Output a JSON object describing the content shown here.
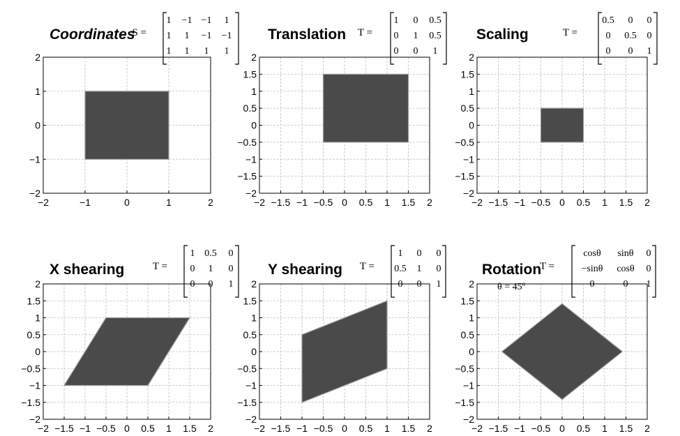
{
  "panels": [
    {
      "id": "coordinates",
      "title": "Coordinates",
      "italic": true,
      "matrix_label": "S =",
      "matrix": [
        [
          "1",
          "−1",
          "−1",
          "1"
        ],
        [
          "1",
          "1",
          "−1",
          "−1"
        ],
        [
          "1",
          "1",
          "1",
          "1"
        ]
      ],
      "theta_label": "",
      "xlim": [
        -2,
        2
      ],
      "ylim": [
        -2,
        2
      ],
      "xticks": [
        "−2",
        "−1",
        "0",
        "1",
        "2"
      ],
      "xtick_values": [
        -2,
        -1,
        0,
        1,
        2
      ],
      "yticks": [
        "−2",
        "−1",
        "0",
        "1",
        "2"
      ],
      "ytick_values": [
        -2,
        -1,
        0,
        1,
        2
      ],
      "polygon": [
        [
          -1,
          -1
        ],
        [
          1,
          -1
        ],
        [
          1,
          1
        ],
        [
          -1,
          1
        ]
      ]
    },
    {
      "id": "translation",
      "title": "Translation",
      "italic": false,
      "matrix_label": "T =",
      "matrix": [
        [
          "1",
          "0",
          "0.5"
        ],
        [
          "0",
          "1",
          "0.5"
        ],
        [
          "0",
          "0",
          "1"
        ]
      ],
      "theta_label": "",
      "xlim": [
        -2,
        2
      ],
      "ylim": [
        -2,
        2
      ],
      "xticks": [
        "−2",
        "−1.5",
        "−1",
        "−0.5",
        "0",
        "0.5",
        "1",
        "1.5",
        "2"
      ],
      "xtick_values": [
        -2,
        -1.5,
        -1,
        -0.5,
        0,
        0.5,
        1,
        1.5,
        2
      ],
      "yticks": [
        "−2",
        "−1.5",
        "−1",
        "−0.5",
        "0",
        "0.5",
        "1",
        "1.5",
        "2"
      ],
      "ytick_values": [
        -2,
        -1.5,
        -1,
        -0.5,
        0,
        0.5,
        1,
        1.5,
        2
      ],
      "polygon": [
        [
          -0.5,
          -0.5
        ],
        [
          1.5,
          -0.5
        ],
        [
          1.5,
          1.5
        ],
        [
          -0.5,
          1.5
        ]
      ]
    },
    {
      "id": "scaling",
      "title": "Scaling",
      "italic": false,
      "matrix_label": "T =",
      "matrix": [
        [
          "0.5",
          "0",
          "0"
        ],
        [
          "0",
          "0.5",
          "0"
        ],
        [
          "0",
          "0",
          "1"
        ]
      ],
      "theta_label": "",
      "xlim": [
        -2,
        2
      ],
      "ylim": [
        -2,
        2
      ],
      "xticks": [
        "−2",
        "−1.5",
        "−1",
        "−0.5",
        "0",
        "0.5",
        "1",
        "1.5",
        "2"
      ],
      "xtick_values": [
        -2,
        -1.5,
        -1,
        -0.5,
        0,
        0.5,
        1,
        1.5,
        2
      ],
      "yticks": [
        "−2",
        "−1.5",
        "−1",
        "−0.5",
        "0",
        "0.5",
        "1",
        "1.5",
        "2"
      ],
      "ytick_values": [
        -2,
        -1.5,
        -1,
        -0.5,
        0,
        0.5,
        1,
        1.5,
        2
      ],
      "polygon": [
        [
          -0.5,
          -0.5
        ],
        [
          0.5,
          -0.5
        ],
        [
          0.5,
          0.5
        ],
        [
          -0.5,
          0.5
        ]
      ]
    },
    {
      "id": "x-shearing",
      "title": "X shearing",
      "italic": false,
      "matrix_label": "T =",
      "matrix": [
        [
          "1",
          "0.5",
          "0"
        ],
        [
          "0",
          "1",
          "0"
        ],
        [
          "0",
          "0",
          "1"
        ]
      ],
      "theta_label": "",
      "xlim": [
        -2,
        2
      ],
      "ylim": [
        -2,
        2
      ],
      "xticks": [
        "−2",
        "−1.5",
        "−1",
        "−0.5",
        "0",
        "0.5",
        "1",
        "1.5",
        "2"
      ],
      "xtick_values": [
        -2,
        -1.5,
        -1,
        -0.5,
        0,
        0.5,
        1,
        1.5,
        2
      ],
      "yticks": [
        "−2",
        "−1.5",
        "−1",
        "−0.5",
        "0",
        "0.5",
        "1",
        "1.5",
        "2"
      ],
      "ytick_values": [
        -2,
        -1.5,
        -1,
        -0.5,
        0,
        0.5,
        1,
        1.5,
        2
      ],
      "polygon": [
        [
          -1.5,
          -1
        ],
        [
          0.5,
          -1
        ],
        [
          1.5,
          1
        ],
        [
          -0.5,
          1
        ]
      ]
    },
    {
      "id": "y-shearing",
      "title": "Y shearing",
      "italic": false,
      "matrix_label": "T =",
      "matrix": [
        [
          "1",
          "0",
          "0"
        ],
        [
          "0.5",
          "1",
          "0"
        ],
        [
          "0",
          "0",
          "1"
        ]
      ],
      "theta_label": "",
      "xlim": [
        -2,
        2
      ],
      "ylim": [
        -2,
        2
      ],
      "xticks": [
        "−2",
        "−1.5",
        "−1",
        "−0.5",
        "0",
        "0.5",
        "1",
        "1.5",
        "2"
      ],
      "xtick_values": [
        -2,
        -1.5,
        -1,
        -0.5,
        0,
        0.5,
        1,
        1.5,
        2
      ],
      "yticks": [
        "−2",
        "−1.5",
        "−1",
        "−0.5",
        "0",
        "0.5",
        "1",
        "1.5",
        "2"
      ],
      "ytick_values": [
        -2,
        -1.5,
        -1,
        -0.5,
        0,
        0.5,
        1,
        1.5,
        2
      ],
      "polygon": [
        [
          -1,
          -1.5
        ],
        [
          1,
          -0.5
        ],
        [
          1,
          1.5
        ],
        [
          -1,
          0.5
        ]
      ]
    },
    {
      "id": "rotation",
      "title": "Rotation",
      "italic": false,
      "matrix_label": "T =",
      "matrix": [
        [
          "cosθ",
          "sinθ",
          "0"
        ],
        [
          "−sinθ",
          "cosθ",
          "0"
        ],
        [
          "0",
          "0",
          "1"
        ]
      ],
      "theta_label": "θ = 45º",
      "xlim": [
        -2,
        2
      ],
      "ylim": [
        -2,
        2
      ],
      "xticks": [
        "−2",
        "−1.5",
        "−1",
        "−0.5",
        "0",
        "0.5",
        "1",
        "1.5",
        "2"
      ],
      "xtick_values": [
        -2,
        -1.5,
        -1,
        -0.5,
        0,
        0.5,
        1,
        1.5,
        2
      ],
      "yticks": [
        "−2",
        "−1.5",
        "−1",
        "−0.5",
        "0",
        "0.5",
        "1",
        "1.5",
        "2"
      ],
      "ytick_values": [
        -2,
        -1.5,
        -1,
        -0.5,
        0,
        0.5,
        1,
        1.5,
        2
      ],
      "polygon": [
        [
          -1.414,
          0
        ],
        [
          0,
          -1.414
        ],
        [
          1.414,
          0
        ],
        [
          0,
          1.414
        ]
      ]
    }
  ],
  "colors": {
    "shape_fill": "#4a4a4a",
    "shape_edge": "#9a9a9a",
    "grid": "#bdbdbd",
    "axis": "#000000"
  }
}
